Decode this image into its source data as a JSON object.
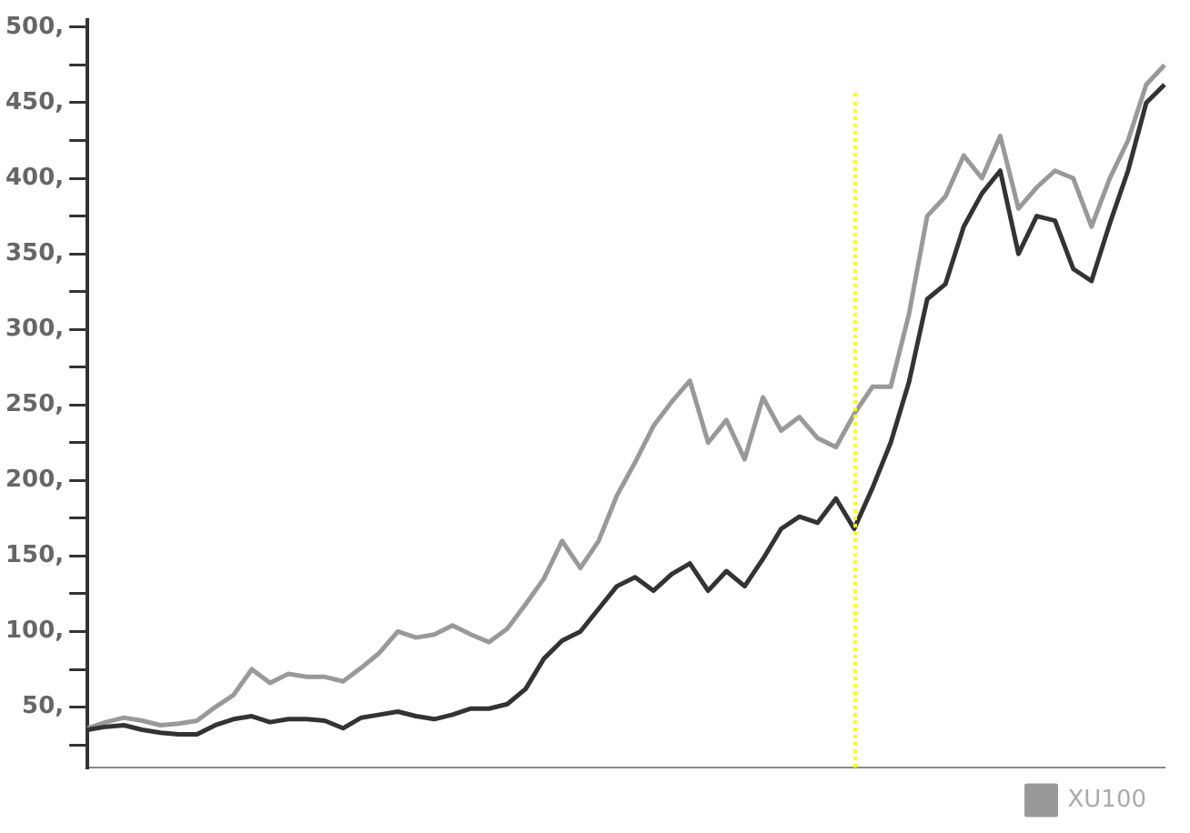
{
  "chart_data": {
    "type": "line",
    "categories": [
      null,
      null,
      null,
      null,
      null,
      null,
      null,
      null,
      null,
      null,
      null,
      null,
      null,
      null,
      null,
      null,
      null,
      null,
      null,
      null,
      null,
      null,
      null,
      null,
      null,
      null,
      null,
      null,
      null,
      null,
      null,
      null,
      null,
      null,
      null,
      null,
      null,
      null,
      null,
      null,
      null,
      null,
      null,
      null,
      null,
      null,
      null,
      null,
      null,
      null,
      null,
      null,
      null,
      null,
      null,
      null,
      null,
      null,
      null,
      null
    ],
    "series": [
      {
        "color": "#333333",
        "values": [
          35,
          37,
          38,
          35,
          33,
          32,
          32,
          38,
          42,
          44,
          40,
          42,
          42,
          41,
          36,
          43,
          45,
          47,
          44,
          42,
          45,
          49,
          49,
          52,
          62,
          82,
          94,
          100,
          115,
          130,
          136,
          127,
          138,
          145,
          127,
          140,
          130,
          148,
          168,
          176,
          172,
          188,
          168,
          195,
          225,
          265,
          320,
          330,
          368,
          390,
          405,
          350,
          375,
          372,
          340,
          332,
          370,
          405,
          450,
          462
        ]
      },
      {
        "name": "XU100",
        "color": "#999999",
        "values": [
          36,
          40,
          43,
          41,
          38,
          39,
          41,
          50,
          58,
          75,
          66,
          72,
          70,
          70,
          67,
          76,
          86,
          100,
          96,
          98,
          104,
          98,
          93,
          102,
          118,
          135,
          160,
          142,
          160,
          190,
          212,
          236,
          252,
          266,
          225,
          240,
          214,
          255,
          233,
          242,
          228,
          222,
          244,
          262,
          262,
          310,
          375,
          388,
          415,
          400,
          428,
          380,
          394,
          405,
          400,
          368,
          400,
          425,
          462,
          475
        ]
      }
    ],
    "ylim": [
      10,
      505
    ],
    "yticks": [
      {
        "value": 25,
        "label": null
      },
      {
        "value": 50,
        "label": "50,"
      },
      {
        "value": 75,
        "label": null
      },
      {
        "value": 100,
        "label": "100,"
      },
      {
        "value": 125,
        "label": null
      },
      {
        "value": 150,
        "label": "150,"
      },
      {
        "value": 175,
        "label": null
      },
      {
        "value": 200,
        "label": "200,"
      },
      {
        "value": 225,
        "label": null
      },
      {
        "value": 250,
        "label": "250,"
      },
      {
        "value": 275,
        "label": null
      },
      {
        "value": 300,
        "label": "300,"
      },
      {
        "value": 325,
        "label": null
      },
      {
        "value": 350,
        "label": "350,"
      },
      {
        "value": 375,
        "label": null
      },
      {
        "value": 400,
        "label": "400,"
      },
      {
        "value": 425,
        "label": null
      },
      {
        "value": 450,
        "label": "450,"
      },
      {
        "value": 475,
        "label": null
      },
      {
        "value": 500,
        "label": "500,"
      }
    ],
    "tick_labels": "y",
    "grid": false,
    "legend": "bottom",
    "marker": "none",
    "line_style": "solid"
  }
}
